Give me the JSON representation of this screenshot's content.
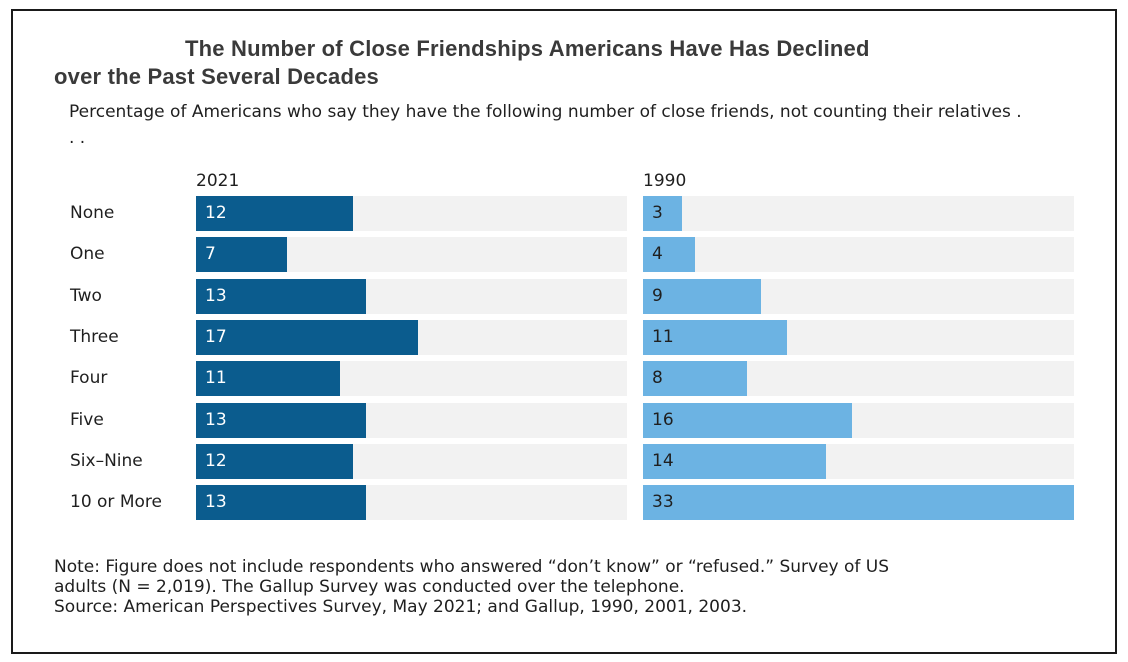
{
  "title_line1": "The Number of Close Friendships Americans Have Has Declined",
  "title_line2": "over the Past Several Decades",
  "subtitle": "Percentage of Americans who say they have the following number of close friends, not counting their relatives . . .",
  "chart_data": {
    "type": "bar",
    "orientation": "horizontal",
    "title": "The Number of Close Friendships Americans Have Has Declined over the Past Several Decades",
    "subtitle": "Percentage of Americans who say they have the following number of close friends, not counting their relatives . . .",
    "categories": [
      "None",
      "One",
      "Two",
      "Three",
      "Four",
      "Five",
      "Six–Nine",
      "10 or More"
    ],
    "series": [
      {
        "name": "2021",
        "values": [
          12,
          7,
          13,
          17,
          11,
          13,
          12,
          13
        ],
        "color": "#0b5c8e"
      },
      {
        "name": "1990",
        "values": [
          3,
          4,
          9,
          11,
          8,
          16,
          14,
          33
        ],
        "color": "#6cb3e3"
      }
    ],
    "xlim": [
      0,
      33
    ],
    "track_color": "#f2f2f2",
    "legend": "panel headers",
    "grid": false
  },
  "note_line1": "Note: Figure does not include respondents who answered “don’t know” or “refused.” Survey of US",
  "note_line2": "adults (N = 2,019). The Gallup Survey was conducted over the telephone.",
  "note_line3": "Source: American Perspectives Survey, May 2021; and Gallup, 1990, 2001, 2003."
}
